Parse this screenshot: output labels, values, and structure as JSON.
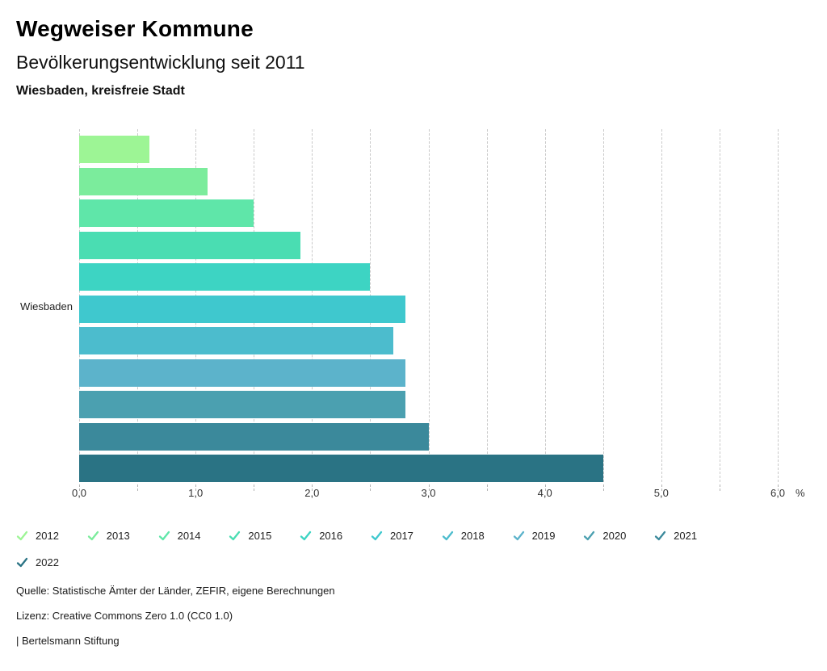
{
  "header": {
    "title": "Wegweiser Kommune",
    "subtitle": "Bevölkerungsentwicklung seit 2011",
    "region": "Wiesbaden, kreisfreie Stadt"
  },
  "chart_data": {
    "type": "bar",
    "orientation": "horizontal",
    "title": "Bevölkerungsentwicklung seit 2011",
    "region": "Wiesbaden, kreisfreie Stadt",
    "category": "Wiesbaden",
    "unit": "%",
    "xlim": [
      0,
      6
    ],
    "grid": true,
    "grid_step": 0.5,
    "x_tick_step": 1.0,
    "x_tick_labels": [
      "0,0",
      "1,0",
      "2,0",
      "3,0",
      "4,0",
      "5,0",
      "6,0"
    ],
    "legend_position": "bottom",
    "series": [
      {
        "year": "2012",
        "value": 0.6,
        "color": "#9DF595"
      },
      {
        "year": "2013",
        "value": 1.1,
        "color": "#7BEC9C"
      },
      {
        "year": "2014",
        "value": 1.5,
        "color": "#5FE6A9"
      },
      {
        "year": "2015",
        "value": 1.9,
        "color": "#4ADDB2"
      },
      {
        "year": "2016",
        "value": 2.5,
        "color": "#3DD4C3"
      },
      {
        "year": "2017",
        "value": 2.8,
        "color": "#3FC8CE"
      },
      {
        "year": "2018",
        "value": 2.7,
        "color": "#4CBCCD"
      },
      {
        "year": "2019",
        "value": 2.8,
        "color": "#5CB3CB"
      },
      {
        "year": "2020",
        "value": 2.8,
        "color": "#4BA0B0"
      },
      {
        "year": "2021",
        "value": 3.0,
        "color": "#3B899B"
      },
      {
        "year": "2022",
        "value": 4.5,
        "color": "#2A7384"
      }
    ]
  },
  "footer": {
    "source": "Quelle: Statistische Ämter der Länder, ZEFIR, eigene Berechnungen",
    "license": "Lizenz: Creative Commons Zero 1.0 (CC0 1.0)",
    "brand": "| Bertelsmann Stiftung"
  }
}
